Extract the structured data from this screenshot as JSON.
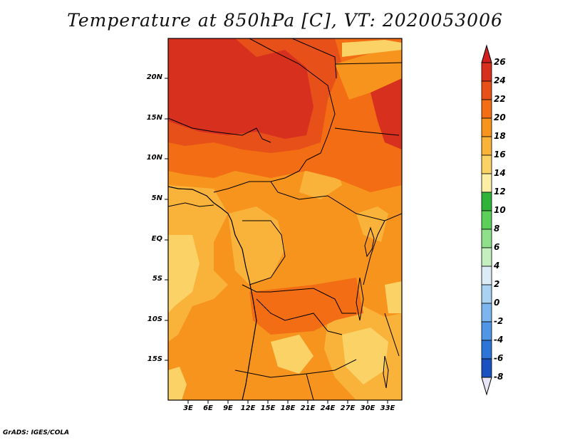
{
  "title": "Temperature at 850hPa [C], VT: 2020053006",
  "credit": "GrADS: IGES/COLA",
  "lat_labels": [
    "20N",
    "15N",
    "10N",
    "5N",
    "EQ",
    "5S",
    "10S",
    "15S"
  ],
  "lon_labels": [
    "3E",
    "6E",
    "9E",
    "12E",
    "15E",
    "18E",
    "21E",
    "24E",
    "27E",
    "30E",
    "33E"
  ],
  "colorbar": {
    "labels": [
      "26",
      "24",
      "22",
      "20",
      "18",
      "16",
      "14",
      "12",
      "10",
      "8",
      "6",
      "4",
      "2",
      "0",
      "-2",
      "-4",
      "-6",
      "-8"
    ],
    "colors": [
      "#d7301f",
      "#e8501a",
      "#f26d14",
      "#f7941d",
      "#f9b23a",
      "#fbd266",
      "#fdeea6",
      "#2fb33a",
      "#5ccf5a",
      "#8fe08a",
      "#c4f0c0",
      "#dcecf7",
      "#a9d2f2",
      "#7db6ee",
      "#4f96e6",
      "#2c74d8",
      "#1a50c0",
      "#0e2e96",
      "#0a1a6a"
    ],
    "top_arrow": "#d21f1f",
    "bottom_arrow": "#e6e6f5"
  }
}
